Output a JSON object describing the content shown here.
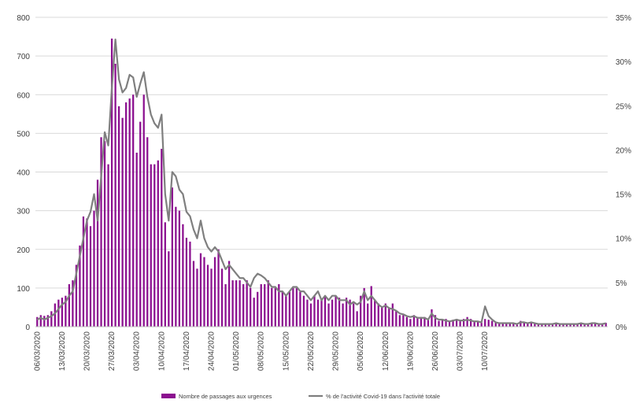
{
  "chart_data": {
    "type": "bar+line",
    "left_axis": {
      "ylim": [
        0,
        800
      ],
      "ticks": [
        "0",
        "100",
        "200",
        "300",
        "400",
        "500",
        "600",
        "700",
        "800"
      ]
    },
    "right_axis": {
      "ylim": [
        0,
        35
      ],
      "ticks": [
        "0%",
        "5%",
        "10%",
        "15%",
        "20%",
        "25%",
        "30%",
        "35%"
      ]
    },
    "x_tick_labels": [
      "06/03/2020",
      "13/03/2020",
      "20/03/2020",
      "27/03/2020",
      "03/04/2020",
      "10/04/2020",
      "17/04/2020",
      "24/04/2020",
      "01/05/2020",
      "08/05/2020",
      "15/05/2020",
      "22/05/2020",
      "29/05/2020",
      "05/06/2020",
      "12/06/2020",
      "19/06/2020",
      "26/06/2020",
      "03/07/2020",
      "10/07/2020"
    ],
    "grid": true,
    "legend_position": "bottom",
    "colors": {
      "bars": "#8B0F8F",
      "line": "#7F7F7F",
      "grid": "#D9D9D9"
    },
    "series": [
      {
        "name": "Nombre de passages aux urgences",
        "type": "bar",
        "axis": "left",
        "start_date": "06/03/2020",
        "values": [
          25,
          30,
          28,
          30,
          40,
          60,
          70,
          75,
          80,
          110,
          120,
          160,
          210,
          285,
          280,
          260,
          300,
          380,
          490,
          480,
          420,
          745,
          680,
          570,
          540,
          580,
          590,
          600,
          450,
          530,
          600,
          490,
          420,
          420,
          430,
          460,
          270,
          195,
          360,
          310,
          300,
          265,
          230,
          220,
          170,
          150,
          190,
          180,
          160,
          150,
          180,
          200,
          150,
          110,
          170,
          120,
          120,
          120,
          110,
          120,
          100,
          75,
          90,
          110,
          110,
          120,
          100,
          100,
          110,
          90,
          80,
          90,
          100,
          100,
          90,
          80,
          70,
          60,
          80,
          70,
          70,
          80,
          60,
          70,
          80,
          75,
          60,
          75,
          70,
          60,
          40,
          80,
          100,
          60,
          105,
          70,
          60,
          50,
          60,
          50,
          60,
          40,
          30,
          30,
          25,
          20,
          30,
          25,
          25,
          25,
          20,
          45,
          30,
          15,
          20,
          20,
          15,
          18,
          20,
          15,
          20,
          25,
          20,
          15,
          15,
          10,
          20,
          18,
          15,
          12,
          10,
          10,
          8,
          10,
          8,
          5,
          15,
          12,
          10,
          10,
          8,
          8,
          5,
          5,
          5,
          5,
          8,
          5,
          5,
          5,
          5,
          5,
          8,
          8,
          5,
          5,
          10,
          8,
          5,
          5,
          10
        ]
      },
      {
        "name": "% de l'activité Covid-19 dans l'activité totale",
        "type": "line",
        "axis": "right",
        "start_date": "06/03/2020",
        "values": [
          0.8,
          1.0,
          0.8,
          1.0,
          1.2,
          1.5,
          2.0,
          2.5,
          2.8,
          3.5,
          4.0,
          6.0,
          8.0,
          10.0,
          12.0,
          13.0,
          15.0,
          12.0,
          17.0,
          22.0,
          20.5,
          27.0,
          32.5,
          28.0,
          26.5,
          27.0,
          28.5,
          28.2,
          26.0,
          27.5,
          28.8,
          26.0,
          24.0,
          23.0,
          22.5,
          24.0,
          15.0,
          12.0,
          17.5,
          17.0,
          15.5,
          15.0,
          13.0,
          12.5,
          11.0,
          10.0,
          12.0,
          10.0,
          9.0,
          8.5,
          9.0,
          8.5,
          7.5,
          6.5,
          7.0,
          6.5,
          6.0,
          5.5,
          5.5,
          5.0,
          4.5,
          5.5,
          6.0,
          5.8,
          5.5,
          5.0,
          4.5,
          4.5,
          4.0,
          4.0,
          3.5,
          4.0,
          4.5,
          4.5,
          4.0,
          4.0,
          3.5,
          3.0,
          3.5,
          4.0,
          3.0,
          3.5,
          3.0,
          3.5,
          3.5,
          3.0,
          3.0,
          3.0,
          2.5,
          2.8,
          2.5,
          2.8,
          4.0,
          3.0,
          3.5,
          3.0,
          2.5,
          2.2,
          2.4,
          2.1,
          2.0,
          1.8,
          1.5,
          1.4,
          1.2,
          1.1,
          1.2,
          1.0,
          1.0,
          1.0,
          0.8,
          1.5,
          1.0,
          0.8,
          0.8,
          0.7,
          0.6,
          0.7,
          0.8,
          0.7,
          0.7,
          0.8,
          0.7,
          0.6,
          0.6,
          0.5,
          2.3,
          1.2,
          0.8,
          0.5,
          0.4,
          0.4,
          0.4,
          0.4,
          0.4,
          0.3,
          0.5,
          0.5,
          0.4,
          0.5,
          0.4,
          0.3,
          0.3,
          0.3,
          0.3,
          0.3,
          0.4,
          0.3,
          0.3,
          0.3,
          0.3,
          0.3,
          0.3,
          0.4,
          0.3,
          0.3,
          0.4,
          0.4,
          0.3,
          0.3,
          0.4
        ]
      }
    ]
  }
}
